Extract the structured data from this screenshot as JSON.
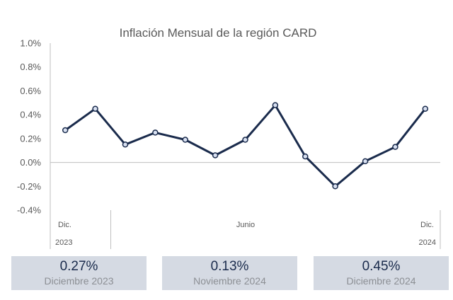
{
  "chart_data": {
    "type": "line",
    "title": "Inflación Mensual de la región CARD",
    "xlabel": "",
    "ylabel": "",
    "ylim": [
      -0.4,
      1.0
    ],
    "y_ticks": [
      "1.0%",
      "0.8%",
      "0.6%",
      "0.4%",
      "0.2%",
      "0.0%",
      "-0.2%",
      "-0.4%"
    ],
    "x_labels": {
      "start_month": "Dic.",
      "start_year": "2023",
      "mid_month": "Junio",
      "end_month": "Dic.",
      "end_year": "2024"
    },
    "series": [
      {
        "values": [
          0.27,
          0.45,
          0.15,
          0.25,
          0.19,
          0.06,
          0.19,
          0.48,
          0.05,
          -0.2,
          0.01,
          0.13,
          0.45
        ],
        "color": "#1a2b4c"
      }
    ],
    "grid": false
  },
  "kpis": [
    {
      "value": "0.27%",
      "label": "Diciembre 2023"
    },
    {
      "value": "0.13%",
      "label": "Noviembre 2024"
    },
    {
      "value": "0.45%",
      "label": "Diciembre 2024"
    }
  ],
  "colors": {
    "line": "#1a2b4c",
    "marker_fill": "#d9e1f2",
    "axis": "#bfbfbf",
    "kpi_bg": "#d5dae3"
  }
}
